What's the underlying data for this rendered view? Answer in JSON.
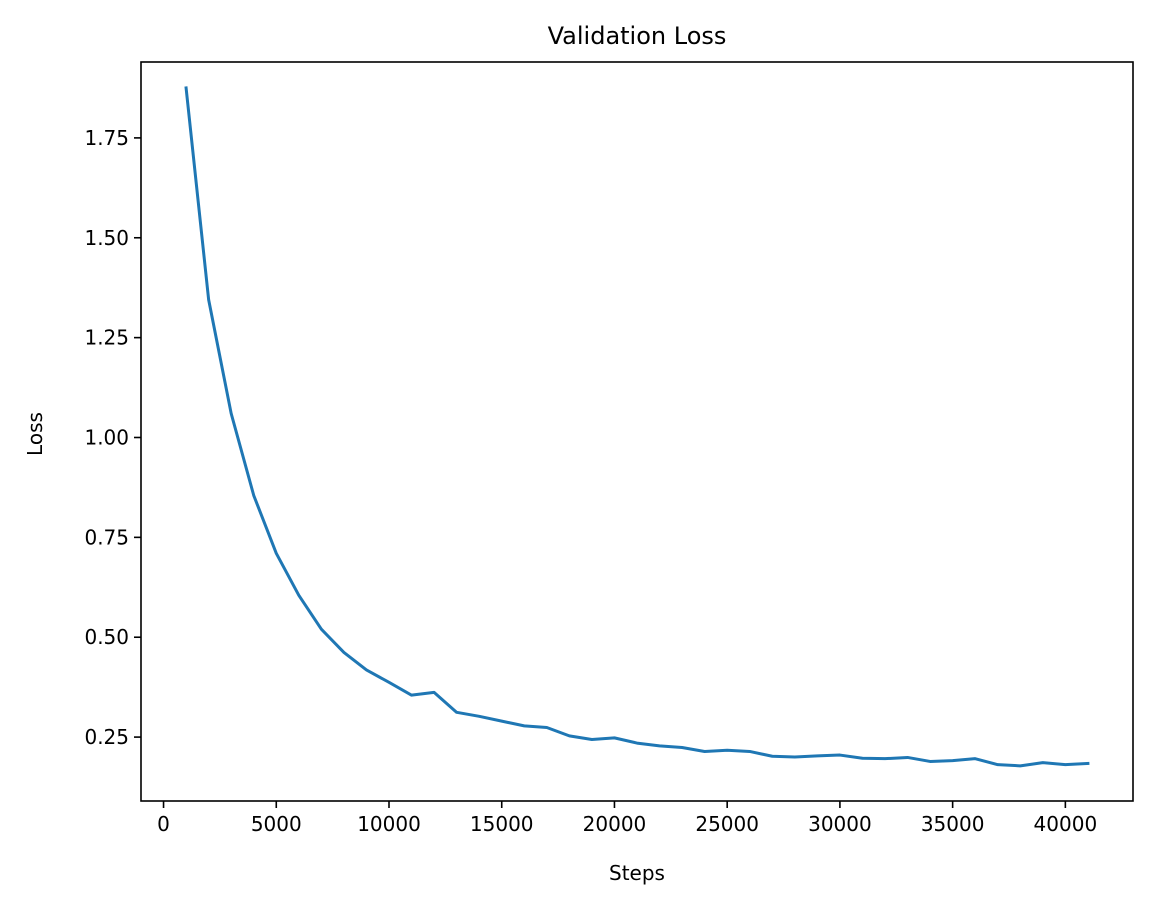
{
  "chart_data": {
    "type": "line",
    "title": "Validation Loss",
    "xlabel": "Steps",
    "ylabel": "Loss",
    "xlim": [
      -1000,
      43000
    ],
    "ylim": [
      0.09,
      1.94
    ],
    "xticks": [
      0,
      5000,
      10000,
      15000,
      20000,
      25000,
      30000,
      35000,
      40000
    ],
    "xtick_labels": [
      "0",
      "5000",
      "10000",
      "15000",
      "20000",
      "25000",
      "30000",
      "35000",
      "40000"
    ],
    "yticks": [
      0.25,
      0.5,
      0.75,
      1.0,
      1.25,
      1.5,
      1.75
    ],
    "ytick_labels": [
      "0.25",
      "0.50",
      "0.75",
      "1.00",
      "1.25",
      "1.50",
      "1.75"
    ],
    "grid": false,
    "legend": "none",
    "colors": {
      "line": "#1f77b4",
      "axes": "#000000",
      "background": "#ffffff"
    },
    "series": [
      {
        "x": [
          1000,
          2000,
          3000,
          4000,
          5000,
          6000,
          7000,
          8000,
          9000,
          10000,
          11000,
          12000,
          13000,
          14000,
          15000,
          16000,
          17000,
          18000,
          19000,
          20000,
          21000,
          22000,
          23000,
          24000,
          25000,
          26000,
          27000,
          28000,
          29000,
          30000,
          31000,
          32000,
          33000,
          34000,
          35000,
          36000,
          37000,
          38000,
          39000,
          40000,
          41000
        ],
        "values": [
          1.875,
          1.345,
          1.06,
          0.855,
          0.71,
          0.605,
          0.52,
          0.462,
          0.418,
          0.387,
          0.355,
          0.362,
          0.312,
          0.302,
          0.29,
          0.278,
          0.274,
          0.253,
          0.244,
          0.248,
          0.235,
          0.228,
          0.224,
          0.214,
          0.217,
          0.214,
          0.202,
          0.2,
          0.203,
          0.205,
          0.197,
          0.196,
          0.199,
          0.189,
          0.191,
          0.196,
          0.181,
          0.178,
          0.186,
          0.181,
          0.184
        ]
      }
    ]
  }
}
